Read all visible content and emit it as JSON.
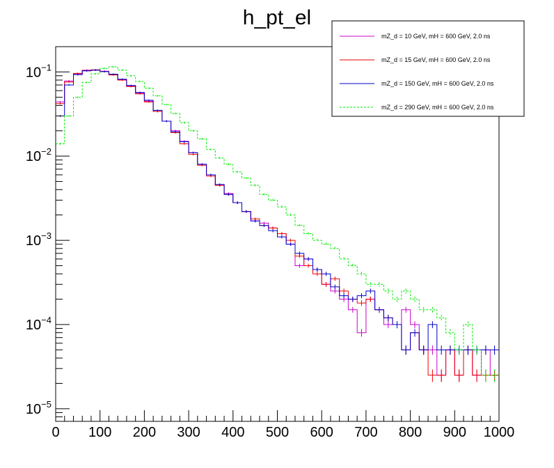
{
  "chart_data": {
    "type": "histogram-step",
    "title": "h_pt_el",
    "xlabel": "",
    "ylabel": "",
    "xlim": [
      0,
      1000
    ],
    "ylim_log10": [
      -5.15,
      -0.7
    ],
    "yscale": "log",
    "bin_width": 20,
    "x_ticks": [
      "0",
      "100",
      "200",
      "300",
      "400",
      "500",
      "600",
      "700",
      "800",
      "900",
      "1000"
    ],
    "y_ticks": [
      {
        "mantissa": "10",
        "exp": "−1",
        "log10": -1
      },
      {
        "mantissa": "10",
        "exp": "−2",
        "log10": -2
      },
      {
        "mantissa": "10",
        "exp": "−3",
        "log10": -3
      },
      {
        "mantissa": "10",
        "exp": "−4",
        "log10": -4
      },
      {
        "mantissa": "10",
        "exp": "−5",
        "log10": -5
      }
    ],
    "legend_position": "top-right",
    "series": [
      {
        "name": "mZ_d = 10 GeV, mH = 600 GeV, 2.0 ns",
        "color": "#cc00cc",
        "dashed": false,
        "values": [
          0.044,
          0.078,
          0.095,
          0.105,
          0.105,
          0.102,
          0.093,
          0.081,
          0.068,
          0.056,
          0.045,
          0.034,
          0.026,
          0.02,
          0.015,
          0.011,
          0.008,
          0.006,
          0.0045,
          0.0036,
          0.0028,
          0.0022,
          0.0017,
          0.0016,
          0.0014,
          0.0012,
          0.0009,
          0.0005,
          0.0006,
          0.00045,
          0.0003,
          0.00025,
          0.0002,
          0.00015,
          8e-05,
          0.0002,
          0.00015,
          0.0001,
          0.0001,
          0.00015,
          0.0001,
          5e-05,
          5e-05,
          2.5e-05,
          5e-05,
          2.5e-05,
          5e-05,
          2.5e-05,
          5e-05,
          2.5e-05
        ]
      },
      {
        "name": "mZ_d = 15 GeV, mH = 600 GeV, 2.0 ns",
        "color": "#ee0000",
        "dashed": false,
        "values": [
          0.042,
          0.076,
          0.096,
          0.104,
          0.106,
          0.101,
          0.092,
          0.08,
          0.067,
          0.055,
          0.044,
          0.034,
          0.026,
          0.019,
          0.014,
          0.0105,
          0.0078,
          0.0058,
          0.0045,
          0.0035,
          0.0028,
          0.0022,
          0.0018,
          0.0015,
          0.0014,
          0.0012,
          0.001,
          0.00065,
          0.0005,
          0.0004,
          0.0003,
          0.00035,
          0.00025,
          0.0002,
          0.00018,
          0.0002,
          0.00015,
          0.00012,
          0.0001,
          5e-05,
          8e-05,
          5e-05,
          2.5e-05,
          2.5e-05,
          5e-05,
          2.5e-05,
          5e-05,
          2.5e-05,
          2.5e-05,
          2.5e-05
        ]
      },
      {
        "name": "mZ_d = 150 GeV, mH = 600 GeV, 2.0 ns",
        "color": "#0000cc",
        "dashed": false,
        "values": [
          0.03,
          0.07,
          0.093,
          0.103,
          0.105,
          0.101,
          0.094,
          0.082,
          0.069,
          0.057,
          0.046,
          0.035,
          0.026,
          0.0195,
          0.0148,
          0.011,
          0.008,
          0.006,
          0.0046,
          0.0035,
          0.0028,
          0.0022,
          0.0017,
          0.0015,
          0.0013,
          0.0011,
          0.0009,
          0.0007,
          0.0006,
          0.00045,
          0.0004,
          0.00028,
          0.00022,
          0.0002,
          0.00022,
          0.00025,
          0.00015,
          0.00012,
          0.0001,
          5e-05,
          8e-05,
          5e-05,
          0.0001,
          5e-05,
          5e-05,
          5e-05,
          5e-05,
          5e-05,
          5e-05,
          5e-05
        ]
      },
      {
        "name": "mZ_d = 290 GeV, mH = 600 GeV, 2.0 ns",
        "color": "#00ee00",
        "dashed": true,
        "values": [
          0.014,
          0.03,
          0.05,
          0.075,
          0.095,
          0.11,
          0.115,
          0.105,
          0.09,
          0.077,
          0.064,
          0.052,
          0.041,
          0.032,
          0.025,
          0.02,
          0.016,
          0.012,
          0.0095,
          0.008,
          0.0065,
          0.0055,
          0.0045,
          0.0035,
          0.003,
          0.0025,
          0.002,
          0.0015,
          0.0012,
          0.001,
          0.0009,
          0.0008,
          0.0006,
          0.0005,
          0.0004,
          0.0003,
          0.0003,
          0.00025,
          0.0002,
          0.00025,
          0.0002,
          0.00015,
          0.00015,
          0.00012,
          8e-05,
          5e-05,
          0.0001,
          5e-05,
          2.5e-05,
          2.5e-05
        ]
      }
    ]
  }
}
